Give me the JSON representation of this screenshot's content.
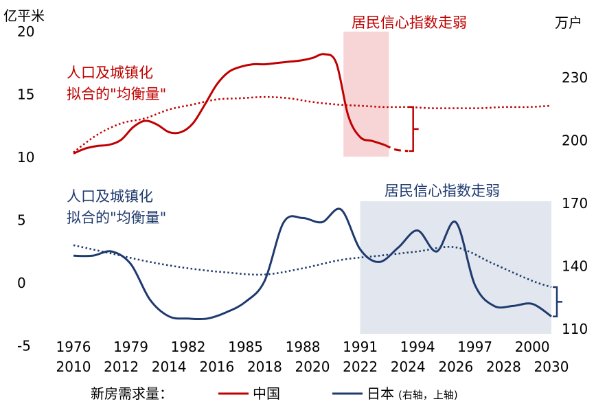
{
  "chart_data": {
    "type": "line",
    "left_axis": {
      "label": "亿平米",
      "ticks": [
        "20",
        "15",
        "10",
        "5",
        "0",
        "-5"
      ],
      "range": [
        -5,
        20
      ]
    },
    "right_axis": {
      "label": "万户",
      "ticks": [
        "230",
        "200",
        "170",
        "140",
        "110"
      ],
      "range": [
        110,
        260
      ]
    },
    "x_axis_japan": [
      "1976",
      "1979",
      "1982",
      "1985",
      "1988",
      "1991",
      "1994",
      "1997",
      "2000"
    ],
    "x_axis_china": [
      "2010",
      "2012",
      "2014",
      "2016",
      "2018",
      "2020",
      "2022",
      "2024",
      "2026",
      "2028",
      "2030"
    ],
    "annotations": {
      "china_fit": [
        "人口及城镇化",
        "拟合的\"均衡量\""
      ],
      "japan_fit": [
        "人口及城镇化",
        "拟合的\"均衡量\""
      ],
      "china_shade": "居民信心指数走弱",
      "japan_shade": "居民信心指数走弱"
    },
    "legend": {
      "prefix": "新房需求量：",
      "china": "中国",
      "japan": "日本",
      "japan_note": "(右轴，上轴)"
    },
    "colors": {
      "china": "#c00000",
      "japan": "#1f3a6e",
      "china_shade": "#f7d4d6",
      "japan_shade": "#e2e6ee"
    },
    "china_actual": {
      "x": [
        2010,
        2010.5,
        2011,
        2011.5,
        2012,
        2012.5,
        2013,
        2013.5,
        2014,
        2014.5,
        2015,
        2015.5,
        2016,
        2016.5,
        2017,
        2017.5,
        2018,
        2018.5,
        2019,
        2019.5,
        2020,
        2020.5,
        2021,
        2021.5,
        2022,
        2022.5,
        2023
      ],
      "y": [
        10.3,
        10.7,
        10.9,
        11.0,
        11.4,
        12.4,
        12.9,
        12.6,
        12.0,
        12.0,
        12.7,
        14.2,
        15.8,
        16.8,
        17.2,
        17.4,
        17.4,
        17.5,
        17.6,
        17.7,
        17.9,
        18.2,
        17.5,
        13.3,
        11.6,
        11.3,
        11.0
      ]
    },
    "china_actual_dashed": {
      "x": [
        2023,
        2023.5,
        2024
      ],
      "y": [
        11.0,
        10.6,
        10.5
      ]
    },
    "china_equilibrium": {
      "x": [
        2010,
        2011,
        2012,
        2013,
        2014,
        2015,
        2016,
        2017,
        2018,
        2019,
        2020,
        2021,
        2022,
        2023,
        2024,
        2025,
        2026,
        2027,
        2028,
        2029,
        2030
      ],
      "y": [
        10.4,
        11.8,
        12.7,
        13.1,
        13.8,
        14.2,
        14.6,
        14.7,
        14.8,
        14.7,
        14.4,
        14.2,
        14.1,
        14.0,
        14.0,
        13.9,
        13.9,
        13.9,
        14.0,
        14.0,
        14.1
      ]
    },
    "japan_actual": {
      "x": [
        1976,
        1977,
        1978,
        1979,
        1980,
        1981,
        1982,
        1983,
        1984,
        1985,
        1986,
        1987,
        1988,
        1989,
        1990,
        1991,
        1992,
        1993,
        1994,
        1995,
        1996,
        1997,
        1998,
        1999,
        2000,
        2001
      ],
      "y": [
        145,
        145,
        147,
        141,
        124,
        116,
        115,
        115,
        118,
        123,
        133,
        161,
        163,
        161,
        167,
        148,
        142,
        149,
        157,
        147,
        161,
        131,
        121,
        121,
        122,
        116
      ]
    },
    "japan_equilibrium": {
      "x": [
        1976,
        1978,
        1980,
        1982,
        1984,
        1986,
        1988,
        1990,
        1992,
        1994,
        1996,
        1998,
        2000,
        2001
      ],
      "y": [
        150,
        146,
        142,
        139,
        137,
        136,
        139,
        143,
        145,
        147,
        149,
        141,
        133,
        130
      ]
    }
  }
}
